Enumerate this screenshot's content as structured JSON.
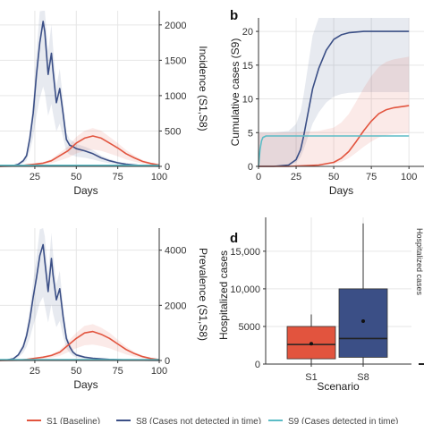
{
  "chart_data": [
    {
      "type": "line",
      "panel": "",
      "xlabel": "Days",
      "ylabel_right": "Incidence (S1,S8)",
      "x_ticks": [
        25,
        50,
        75,
        100
      ],
      "y_ticks_right": [
        "0",
        "500",
        "1000",
        "1500",
        "2000"
      ],
      "ylim": [
        0,
        2200
      ],
      "series": [
        {
          "color": "#3b4f86",
          "x": [
            2,
            8,
            12,
            15,
            18,
            20,
            22,
            24,
            26,
            28,
            30,
            31,
            33,
            35,
            36,
            38,
            40,
            42,
            44,
            46,
            48,
            50,
            55,
            60,
            65,
            70,
            75,
            80,
            85,
            90,
            95,
            100
          ],
          "values": [
            0,
            5,
            10,
            30,
            80,
            150,
            400,
            750,
            1300,
            1750,
            2050,
            1900,
            1300,
            1600,
            1350,
            900,
            1100,
            750,
            380,
            300,
            280,
            250,
            220,
            180,
            120,
            80,
            50,
            30,
            20,
            10,
            5,
            2
          ]
        },
        {
          "color": "#e2543e",
          "x": [
            2,
            15,
            20,
            25,
            30,
            35,
            40,
            45,
            50,
            55,
            60,
            65,
            70,
            75,
            80,
            85,
            90,
            95,
            100
          ],
          "values": [
            0,
            5,
            20,
            30,
            45,
            80,
            150,
            220,
            330,
            400,
            430,
            400,
            330,
            260,
            180,
            120,
            70,
            40,
            20
          ]
        },
        {
          "color": "#5bbcc6",
          "x": [
            2,
            20,
            40,
            60,
            80,
            100
          ],
          "values": [
            15,
            15,
            15,
            15,
            15,
            15
          ]
        }
      ]
    },
    {
      "type": "line",
      "panel": "b",
      "xlabel": "Days",
      "ylabel": "Cumulative cases (S9)",
      "x_ticks": [
        0,
        25,
        50,
        75,
        100
      ],
      "y_ticks": [
        "0",
        "5",
        "10",
        "15",
        "20"
      ],
      "ylim": [
        0,
        22
      ],
      "series": [
        {
          "color": "#3b4f86",
          "x": [
            0,
            10,
            20,
            25,
            28,
            30,
            33,
            36,
            40,
            45,
            50,
            55,
            60,
            70,
            80,
            90,
            100
          ],
          "values": [
            0,
            0,
            0.2,
            1,
            2.5,
            4.5,
            8,
            11.5,
            14.5,
            17.2,
            18.8,
            19.5,
            19.8,
            20,
            20,
            20,
            20
          ]
        },
        {
          "color": "#e2543e",
          "x": [
            0,
            20,
            40,
            50,
            55,
            60,
            65,
            70,
            75,
            80,
            85,
            90,
            100
          ],
          "values": [
            0,
            0,
            0.2,
            0.6,
            1.2,
            2.2,
            3.7,
            5.3,
            6.7,
            7.8,
            8.4,
            8.7,
            9
          ]
        },
        {
          "color": "#5bbcc6",
          "x": [
            0,
            1,
            2,
            3,
            5,
            10,
            20,
            40,
            60,
            80,
            100
          ],
          "values": [
            0,
            2.5,
            3.8,
            4.3,
            4.5,
            4.5,
            4.5,
            4.5,
            4.5,
            4.5,
            4.5
          ]
        }
      ]
    },
    {
      "type": "line",
      "panel": "",
      "xlabel": "Days",
      "ylabel_right": "Prevalence (S1,S8)",
      "x_ticks": [
        25,
        50,
        75,
        100
      ],
      "y_ticks_right": [
        "0",
        "2000",
        "4000"
      ],
      "ylim": [
        0,
        4800
      ],
      "series": [
        {
          "color": "#3b4f86",
          "x": [
            2,
            8,
            12,
            15,
            18,
            20,
            22,
            24,
            26,
            28,
            30,
            31,
            33,
            35,
            36,
            38,
            40,
            42,
            44,
            46,
            48,
            50,
            55,
            60,
            70,
            80,
            90,
            100
          ],
          "values": [
            0,
            20,
            60,
            200,
            500,
            900,
            1500,
            2300,
            3000,
            3800,
            4200,
            3600,
            2500,
            3700,
            3100,
            2200,
            2600,
            1600,
            800,
            500,
            300,
            200,
            120,
            80,
            40,
            20,
            10,
            5
          ]
        },
        {
          "color": "#e2543e",
          "x": [
            2,
            15,
            20,
            25,
            30,
            35,
            40,
            45,
            50,
            55,
            60,
            65,
            70,
            75,
            80,
            85,
            90,
            95,
            100
          ],
          "values": [
            0,
            10,
            40,
            80,
            120,
            180,
            300,
            550,
            800,
            1000,
            1050,
            950,
            800,
            600,
            400,
            250,
            140,
            70,
            30
          ]
        },
        {
          "color": "#5bbcc6",
          "x": [
            2,
            20,
            40,
            60,
            80,
            100
          ],
          "values": [
            30,
            30,
            30,
            30,
            30,
            30
          ]
        }
      ]
    },
    {
      "type": "box",
      "panel": "d",
      "xlabel": "Scenario",
      "ylabel": "Hospitalized cases",
      "ylabel_partial": "Hospitalized cases",
      "categories": [
        "S1",
        "S8"
      ],
      "y_ticks": [
        "0",
        "5000",
        "10,000",
        "15,000"
      ],
      "ylim": [
        0,
        19500
      ],
      "boxes": [
        {
          "name": "S1",
          "color": "#e2543e",
          "min": 0,
          "q1": 700,
          "median": 2600,
          "q3": 5000,
          "max": 6600,
          "mean": 2700
        },
        {
          "name": "S8",
          "color": "#3b4f86",
          "min": 0,
          "q1": 900,
          "median": 3400,
          "q3": 10000,
          "max": 18700,
          "mean": 5700
        }
      ]
    }
  ],
  "legend": {
    "items": [
      {
        "label": "S1 (Baseline)",
        "color": "#e2543e"
      },
      {
        "label": "S8 (Cases not detected in time)",
        "color": "#3b4f86"
      },
      {
        "label": "S9 (Cases detected in time)",
        "color": "#5bbcc6"
      }
    ]
  }
}
